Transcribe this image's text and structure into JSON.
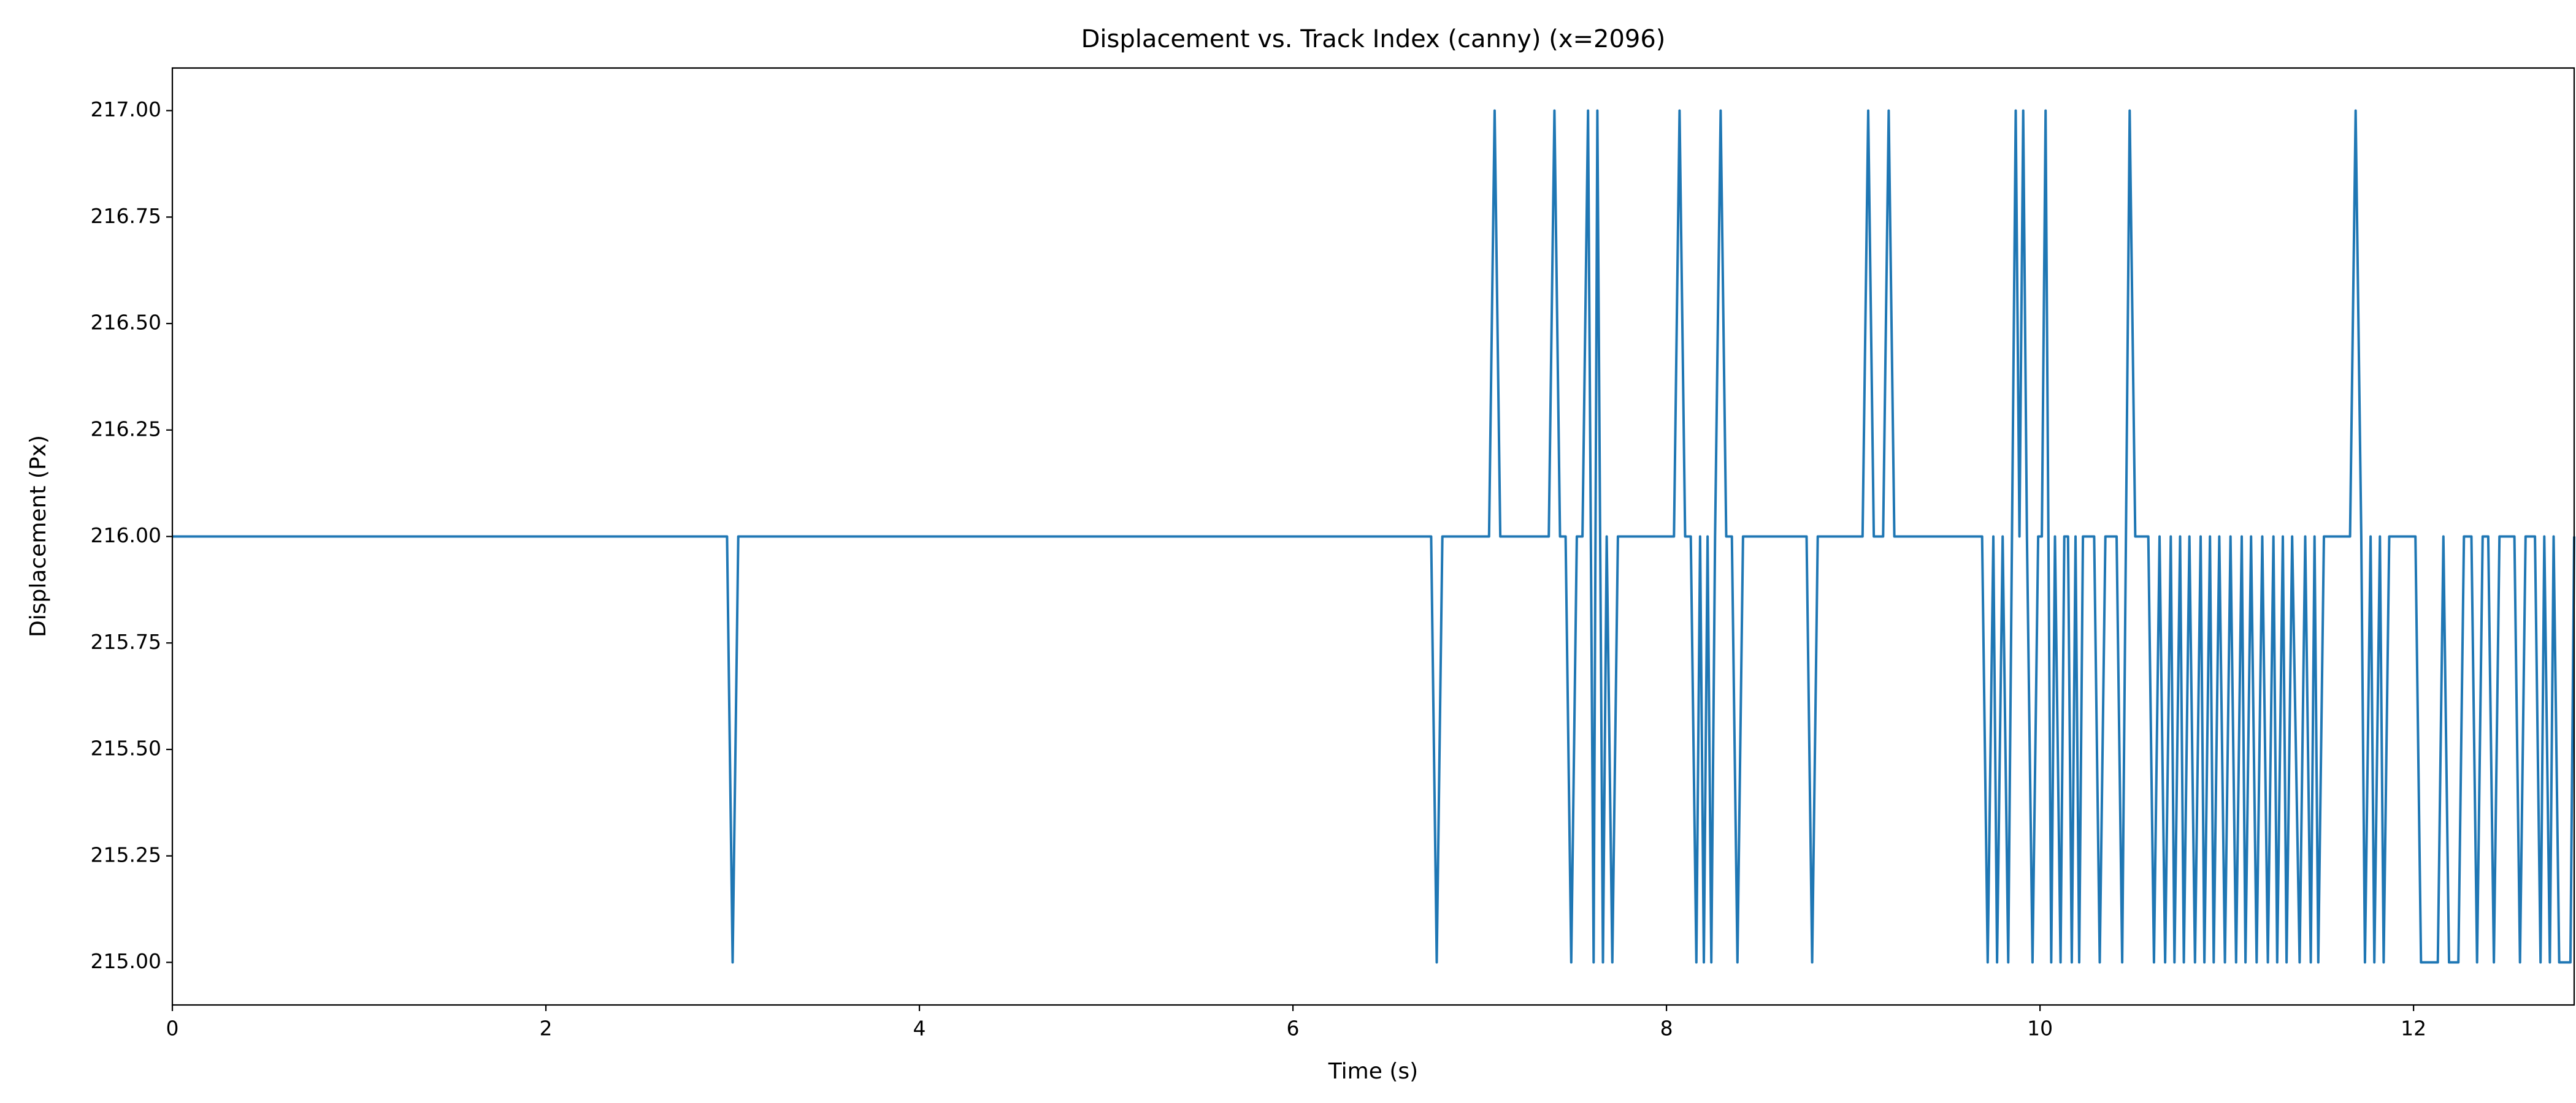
{
  "chart_data": {
    "type": "line",
    "title": "Displacement vs. Track Index (canny) (x=2096)",
    "x_label": "Time (s)",
    "y_label": "Displacement (Px)",
    "xlim": [
      0,
      12.86
    ],
    "ylim": [
      214.9,
      217.1
    ],
    "xticks": [
      0,
      2,
      4,
      6,
      8,
      10,
      12
    ],
    "yticks": [
      {
        "value": 215,
        "label": "215.00"
      },
      {
        "value": 215.25,
        "label": "215.25"
      },
      {
        "value": 215.5,
        "label": "215.50"
      },
      {
        "value": 215.75,
        "label": "215.75"
      },
      {
        "value": 216,
        "label": "216.00"
      },
      {
        "value": 216.25,
        "label": "216.25"
      },
      {
        "value": 216.5,
        "label": "216.50"
      },
      {
        "value": 216.75,
        "label": "216.75"
      },
      {
        "value": 217,
        "label": "217.00"
      }
    ],
    "series": [
      {
        "color": "#1f77b4",
        "x": [
          0,
          2.97,
          3.0,
          3.03,
          6.74,
          6.77,
          6.8,
          7.05,
          7.08,
          7.11,
          7.37,
          7.4,
          7.43,
          7.46,
          7.49,
          7.52,
          7.55,
          7.58,
          7.61,
          7.63,
          7.66,
          7.68,
          7.71,
          7.74,
          8.04,
          8.07,
          8.1,
          8.13,
          8.16,
          8.18,
          8.2,
          8.22,
          8.24,
          8.26,
          8.29,
          8.32,
          8.35,
          8.38,
          8.41,
          8.75,
          8.78,
          8.81,
          9.05,
          9.08,
          9.11,
          9.16,
          9.19,
          9.22,
          9.69,
          9.72,
          9.75,
          9.77,
          9.8,
          9.83,
          9.85,
          9.87,
          9.89,
          9.91,
          9.93,
          9.96,
          9.99,
          10.01,
          10.03,
          10.06,
          10.08,
          10.11,
          10.13,
          10.15,
          10.17,
          10.19,
          10.21,
          10.23,
          10.29,
          10.32,
          10.35,
          10.41,
          10.44,
          10.46,
          10.48,
          10.51,
          10.58,
          10.61,
          10.64,
          10.67,
          10.7,
          10.72,
          10.75,
          10.77,
          10.8,
          10.83,
          10.86,
          10.88,
          10.91,
          10.93,
          10.96,
          10.99,
          11.02,
          11.05,
          11.08,
          11.1,
          11.13,
          11.16,
          11.19,
          11.22,
          11.25,
          11.27,
          11.3,
          11.32,
          11.35,
          11.39,
          11.42,
          11.45,
          11.47,
          11.49,
          11.52,
          11.66,
          11.69,
          11.72,
          11.74,
          11.77,
          11.79,
          11.82,
          11.84,
          11.87,
          12.01,
          12.04,
          12.13,
          12.16,
          12.19,
          12.24,
          12.27,
          12.31,
          12.34,
          12.37,
          12.4,
          12.43,
          12.46,
          12.54,
          12.57,
          12.6,
          12.65,
          12.68,
          12.7,
          12.73,
          12.75,
          12.78,
          12.84,
          12.86
        ],
        "values": [
          216,
          216,
          215,
          216,
          216,
          215,
          216,
          216,
          217,
          216,
          216,
          217,
          216,
          216,
          215,
          216,
          216,
          217,
          215,
          217,
          215,
          216,
          215,
          216,
          216,
          217,
          216,
          216,
          215,
          216,
          215,
          216,
          215,
          216,
          217,
          216,
          216,
          215,
          216,
          216,
          215,
          216,
          216,
          217,
          216,
          216,
          217,
          216,
          216,
          215,
          216,
          215,
          216,
          215,
          216,
          217,
          216,
          217,
          216,
          215,
          216,
          216,
          217,
          215,
          216,
          215,
          216,
          216,
          215,
          216,
          215,
          216,
          216,
          215,
          216,
          216,
          215,
          216,
          217,
          216,
          216,
          215,
          216,
          215,
          216,
          215,
          216,
          215,
          216,
          215,
          216,
          215,
          216,
          215,
          216,
          215,
          216,
          215,
          216,
          215,
          216,
          215,
          216,
          215,
          216,
          215,
          216,
          215,
          216,
          215,
          216,
          215,
          216,
          215,
          216,
          216,
          217,
          216,
          215,
          216,
          215,
          216,
          215,
          216,
          216,
          215,
          215,
          216,
          215,
          215,
          216,
          216,
          215,
          216,
          216,
          215,
          216,
          216,
          215,
          216,
          216,
          215,
          216,
          215,
          216,
          215,
          215,
          216
        ]
      }
    ]
  }
}
